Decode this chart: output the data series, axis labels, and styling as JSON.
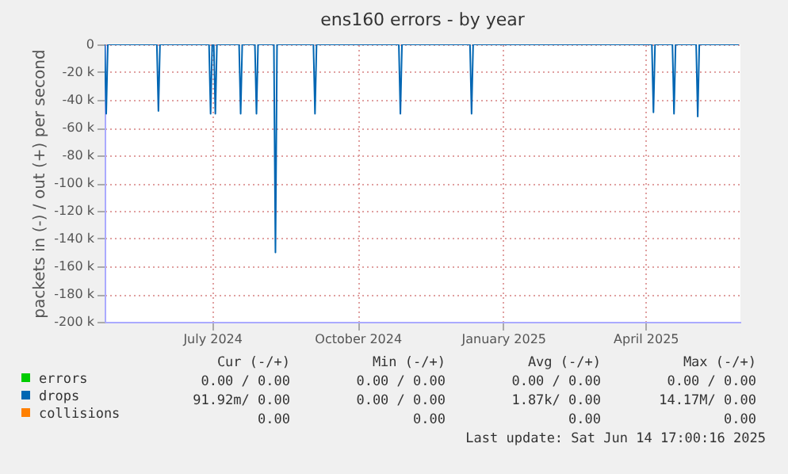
{
  "chart_data": {
    "type": "line",
    "title": "ens160 errors - by year",
    "ylabel": "packets in (-) / out (+) per second",
    "xlim": [
      "2024-04-24",
      "2025-05-31"
    ],
    "ylim": [
      -200000,
      0
    ],
    "xticks": [
      {
        "value": "2024-07-01",
        "label": "July 2024"
      },
      {
        "value": "2024-10-01",
        "label": "October 2024"
      },
      {
        "value": "2025-01-01",
        "label": "January 2025"
      },
      {
        "value": "2025-04-01",
        "label": "April 2025"
      }
    ],
    "yticks": [
      {
        "value": -200000,
        "label": "-200 k"
      },
      {
        "value": -180000,
        "label": "-180 k"
      },
      {
        "value": -160000,
        "label": "-160 k"
      },
      {
        "value": -140000,
        "label": "-140 k"
      },
      {
        "value": -120000,
        "label": "-120 k"
      },
      {
        "value": -100000,
        "label": "-100 k"
      },
      {
        "value": -80000,
        "label": "-80 k"
      },
      {
        "value": -60000,
        "label": "-60 k"
      },
      {
        "value": -40000,
        "label": "-40 k"
      },
      {
        "value": -20000,
        "label": "-20 k"
      },
      0
    ],
    "grid": true,
    "legend": "bottom left",
    "series": [
      {
        "name": "errors",
        "color": "#00cc00"
      },
      {
        "name": "drops",
        "color": "#0066b3",
        "x": [
          "2024-04-24",
          "2024-04-25",
          "2024-04-26",
          "2024-05-27",
          "2024-05-28",
          "2024-05-29",
          "2024-06-29",
          "2024-06-30",
          "2024-07-01",
          "2024-07-02",
          "2024-07-03",
          "2024-07-04",
          "2024-07-18",
          "2024-07-19",
          "2024-07-20",
          "2024-07-28",
          "2024-07-29",
          "2024-07-30",
          "2024-08-09",
          "2024-08-10",
          "2024-08-11",
          "2024-09-03",
          "2024-09-04",
          "2024-09-05",
          "2024-10-27",
          "2024-10-28",
          "2024-10-29",
          "2024-12-11",
          "2024-12-12",
          "2024-12-13",
          "2025-04-05",
          "2025-04-06",
          "2025-04-07",
          "2025-04-18",
          "2025-04-19",
          "2025-04-20",
          "2025-05-03",
          "2025-05-04",
          "2025-05-05",
          "2025-05-30"
        ],
        "values": [
          0,
          -50000,
          0,
          0,
          -48000,
          0,
          0,
          -50000,
          0,
          0,
          -50000,
          0,
          0,
          -50000,
          0,
          0,
          -50000,
          0,
          0,
          -150000,
          0,
          0,
          -50000,
          0,
          0,
          -50000,
          0,
          0,
          -50000,
          0,
          0,
          -49000,
          0,
          0,
          -50000,
          0,
          0,
          -52000,
          0,
          0
        ]
      },
      {
        "name": "collisions",
        "color": "#ff8000"
      }
    ],
    "annotations": [
      "Cur (-/+)",
      "Min (-/+)",
      "Avg (-/+)",
      "Max (-/+)",
      "0.00 / 0.00",
      "0.00 / 0.00",
      "0.00 / 0.00",
      "0.00 / 0.00",
      "91.92m/ 0.00",
      "0.00 / 0.00",
      "1.87k/ 0.00",
      "14.17M/ 0.00",
      "0.00",
      "0.00",
      "0.00",
      "0.00",
      "Last update: Sat Jun 14 17:00:16 2025"
    ]
  }
}
